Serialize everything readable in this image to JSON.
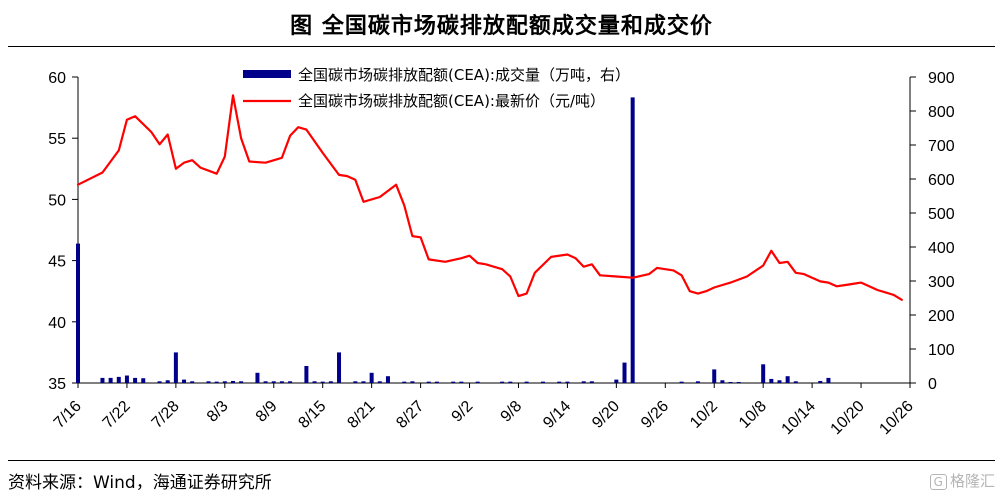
{
  "title": "图  全国碳市场碳排放配额成交量和成交价",
  "source": "资料来源：Wind，海通证券研究所",
  "watermark": "格隆汇",
  "watermark_icon": "G",
  "colors": {
    "bar": "#00008b",
    "line": "#ff0000",
    "axis": "#000000"
  },
  "chart_data": {
    "type": "bar+line",
    "xlabels": [
      "7/16",
      "7/22",
      "7/28",
      "8/3",
      "8/9",
      "8/15",
      "8/21",
      "8/27",
      "9/2",
      "9/8",
      "9/14",
      "9/20",
      "9/26",
      "10/2",
      "10/8",
      "10/14",
      "10/20",
      "10/26"
    ],
    "xrange": [
      0,
      102
    ],
    "y_left": {
      "min": 35,
      "max": 60,
      "ticks": [
        35,
        40,
        45,
        50,
        55,
        60
      ]
    },
    "y_right": {
      "min": 0,
      "max": 900,
      "ticks": [
        0,
        100,
        200,
        300,
        400,
        500,
        600,
        700,
        800,
        900
      ]
    },
    "series": [
      {
        "name": "全国碳市场碳排放配额(CEA):成交量（万吨，右）",
        "type": "bar",
        "axis": "right",
        "points": [
          [
            0,
            410
          ],
          [
            3,
            15
          ],
          [
            4,
            15
          ],
          [
            5,
            18
          ],
          [
            6,
            22
          ],
          [
            7,
            15
          ],
          [
            8,
            14
          ],
          [
            10,
            5
          ],
          [
            11,
            8
          ],
          [
            12,
            90
          ],
          [
            13,
            10
          ],
          [
            14,
            5
          ],
          [
            16,
            5
          ],
          [
            17,
            4
          ],
          [
            18,
            5
          ],
          [
            19,
            6
          ],
          [
            20,
            5
          ],
          [
            22,
            30
          ],
          [
            23,
            5
          ],
          [
            24,
            5
          ],
          [
            25,
            5
          ],
          [
            26,
            5
          ],
          [
            28,
            50
          ],
          [
            29,
            5
          ],
          [
            30,
            4
          ],
          [
            31,
            5
          ],
          [
            32,
            90
          ],
          [
            34,
            5
          ],
          [
            35,
            5
          ],
          [
            36,
            30
          ],
          [
            37,
            5
          ],
          [
            38,
            20
          ],
          [
            40,
            4
          ],
          [
            41,
            5
          ],
          [
            43,
            4
          ],
          [
            44,
            4
          ],
          [
            46,
            4
          ],
          [
            47,
            4
          ],
          [
            49,
            4
          ],
          [
            52,
            4
          ],
          [
            53,
            4
          ],
          [
            55,
            4
          ],
          [
            57,
            4
          ],
          [
            59,
            4
          ],
          [
            60,
            4
          ],
          [
            62,
            5
          ],
          [
            63,
            5
          ],
          [
            66,
            10
          ],
          [
            67,
            60
          ],
          [
            68,
            840
          ],
          [
            74,
            4
          ],
          [
            76,
            5
          ],
          [
            78,
            40
          ],
          [
            79,
            8
          ],
          [
            80,
            3
          ],
          [
            81,
            3
          ],
          [
            84,
            55
          ],
          [
            85,
            12
          ],
          [
            86,
            8
          ],
          [
            87,
            20
          ],
          [
            88,
            5
          ],
          [
            91,
            6
          ],
          [
            92,
            15
          ]
        ]
      },
      {
        "name": "全国碳市场碳排放配额(CEA):最新价（元/吨）",
        "type": "line",
        "axis": "left",
        "points": [
          [
            0,
            51.2
          ],
          [
            3,
            52.2
          ],
          [
            5,
            54
          ],
          [
            6,
            56.5
          ],
          [
            7,
            56.8
          ],
          [
            9,
            55.5
          ],
          [
            10,
            54.5
          ],
          [
            11,
            55.3
          ],
          [
            12,
            52.5
          ],
          [
            13,
            53
          ],
          [
            14,
            53.2
          ],
          [
            15,
            52.6
          ],
          [
            17,
            52.1
          ],
          [
            18,
            53.5
          ],
          [
            19,
            58.5
          ],
          [
            20,
            55
          ],
          [
            21,
            53.1
          ],
          [
            23,
            53
          ],
          [
            25,
            53.4
          ],
          [
            26,
            55.2
          ],
          [
            27,
            55.9
          ],
          [
            28,
            55.7
          ],
          [
            30,
            53.8
          ],
          [
            32,
            52
          ],
          [
            33,
            51.9
          ],
          [
            34,
            51.6
          ],
          [
            35,
            49.8
          ],
          [
            37,
            50.2
          ],
          [
            39,
            51.2
          ],
          [
            40,
            49.5
          ],
          [
            41,
            47
          ],
          [
            42,
            46.9
          ],
          [
            43,
            45.1
          ],
          [
            45,
            44.9
          ],
          [
            47,
            45.2
          ],
          [
            48,
            45.4
          ],
          [
            49,
            44.8
          ],
          [
            50,
            44.7
          ],
          [
            52,
            44.3
          ],
          [
            53,
            43.7
          ],
          [
            54,
            42.1
          ],
          [
            55,
            42.3
          ],
          [
            56,
            44
          ],
          [
            58,
            45.3
          ],
          [
            60,
            45.5
          ],
          [
            61,
            45.2
          ],
          [
            62,
            44.5
          ],
          [
            63,
            44.7
          ],
          [
            64,
            43.8
          ],
          [
            66,
            43.7
          ],
          [
            68,
            43.6
          ],
          [
            70,
            43.9
          ],
          [
            71,
            44.4
          ],
          [
            73,
            44.2
          ],
          [
            74,
            43.8
          ],
          [
            75,
            42.5
          ],
          [
            76,
            42.3
          ],
          [
            77,
            42.5
          ],
          [
            78,
            42.8
          ],
          [
            80,
            43.2
          ],
          [
            82,
            43.7
          ],
          [
            84,
            44.6
          ],
          [
            85,
            45.8
          ],
          [
            86,
            44.8
          ],
          [
            87,
            44.9
          ],
          [
            88,
            44
          ],
          [
            89,
            43.9
          ],
          [
            90,
            43.6
          ],
          [
            91,
            43.3
          ],
          [
            92,
            43.2
          ],
          [
            93,
            42.9
          ],
          [
            94,
            43
          ],
          [
            95,
            43.1
          ],
          [
            96,
            43.2
          ],
          [
            97,
            42.9
          ],
          [
            98,
            42.6
          ],
          [
            99,
            42.4
          ],
          [
            100,
            42.2
          ],
          [
            101,
            41.8
          ]
        ]
      }
    ]
  }
}
